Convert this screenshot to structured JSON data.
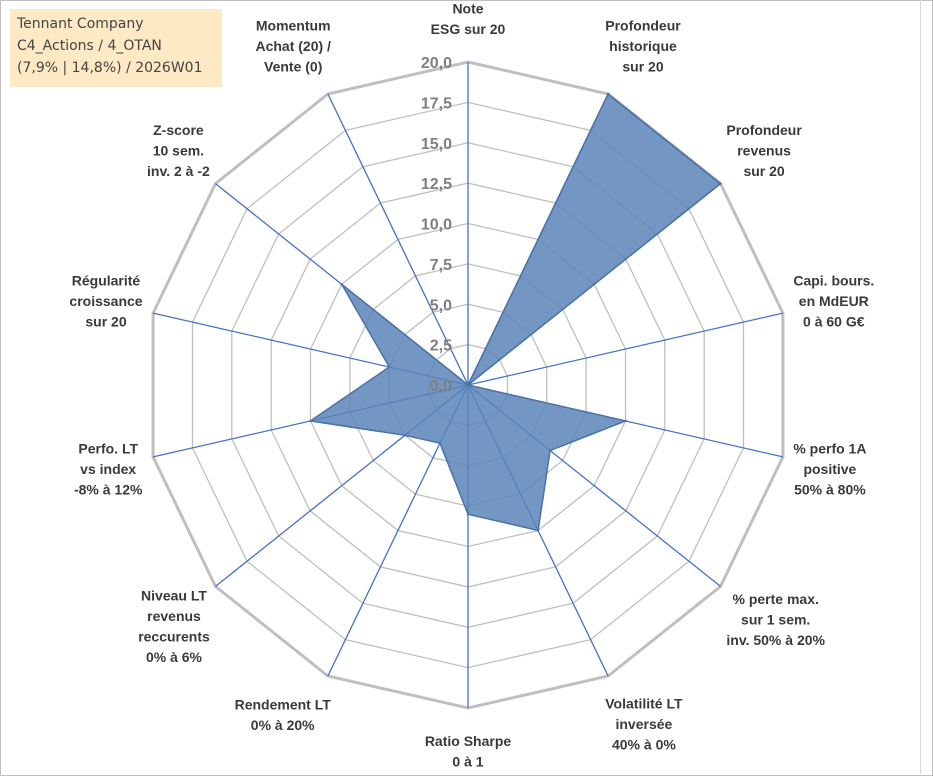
{
  "info_box": {
    "line1": "Tennant Company",
    "line2": "C4_Actions / 4_OTAN",
    "line3": "(7,9% | 14,8%) / 2026W01"
  },
  "colors": {
    "grid": "#bfbfbf",
    "spokes": "#4472c4",
    "fill": "#5b84b8",
    "stroke": "#4a72a8",
    "box_bg": "#fde9c4"
  },
  "chart_data": {
    "type": "radar",
    "range": [
      0,
      20
    ],
    "tick_step": 2.5,
    "tick_labels": [
      "0,0",
      "2,5",
      "5,0",
      "7,5",
      "10,0",
      "12,5",
      "15,0",
      "17,5",
      "20,0"
    ],
    "axes": [
      {
        "lines": [
          "Note",
          "ESG sur 20"
        ],
        "value": 0
      },
      {
        "lines": [
          "Profondeur",
          "historique",
          "sur 20"
        ],
        "value": 20
      },
      {
        "lines": [
          "Profondeur",
          "revenus",
          "sur 20"
        ],
        "value": 20
      },
      {
        "lines": [
          "Capi. bours.",
          "en MdEUR",
          "0 à 60 G€"
        ],
        "value": 0
      },
      {
        "lines": [
          "% perfo 1A",
          "positive",
          "50% à 80%"
        ],
        "value": 10
      },
      {
        "lines": [
          "% perte max.",
          "sur 1 sem.",
          "inv. 50% à 20%"
        ],
        "value": 6.5
      },
      {
        "lines": [
          "Volatilité LT",
          "inversée",
          "40% à 0%"
        ],
        "value": 10
      },
      {
        "lines": [
          "Ratio Sharpe",
          "0 à 1"
        ],
        "value": 8
      },
      {
        "lines": [
          "Rendement LT",
          "0% à 20%"
        ],
        "value": 4
      },
      {
        "lines": [
          "Niveau LT",
          "revenus",
          "reccurents",
          "0% à 6%"
        ],
        "value": 5
      },
      {
        "lines": [
          "Perfo. LT",
          "vs index",
          "-8% à 12%"
        ],
        "value": 10
      },
      {
        "lines": [
          "Régularité",
          "croissance",
          "sur 20"
        ],
        "value": 5
      },
      {
        "lines": [
          "Z-score",
          "10 sem.",
          "inv. 2 à -2"
        ],
        "value": 10
      },
      {
        "lines": [
          "Momentum",
          "Achat (20) /",
          "Vente (0)"
        ],
        "value": 0
      }
    ]
  }
}
